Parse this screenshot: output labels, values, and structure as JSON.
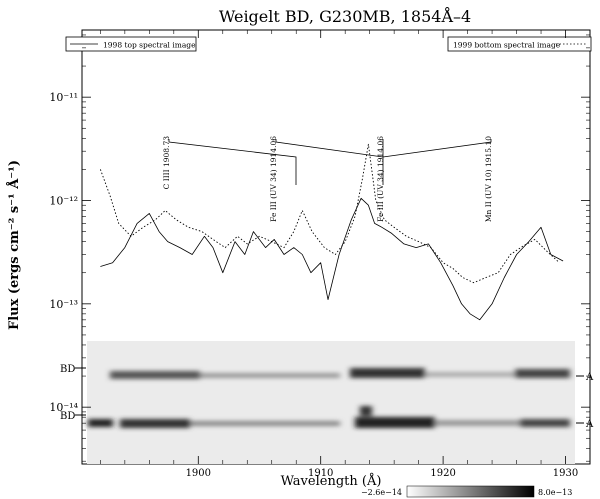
{
  "chart_data": {
    "type": "line",
    "title": "Weigelt BD, G230MB, 1854Å–4",
    "xlabel": "Wavelength (Å)",
    "ylabel": "Flux (ergs cm⁻² s⁻¹ Å⁻¹)",
    "xlim": [
      1890.5,
      1932
    ],
    "ylim_log10": [
      -14.55,
      -10.35
    ],
    "y_scale": "log",
    "x_ticks": [
      1900,
      1910,
      1920,
      1930
    ],
    "x_tick_labels": [
      "1900",
      "1910",
      "1920",
      "1930"
    ],
    "y_ticks_log10": [
      -14,
      -13,
      -12,
      -11
    ],
    "y_tick_labels": [
      "10⁻¹⁴",
      "10⁻¹³",
      "10⁻¹²",
      "10⁻¹¹"
    ],
    "legend": {
      "left": "1998 top spectral image",
      "right": "1999 bottom spectral image"
    },
    "series": [
      {
        "name": "1998 top spectral image",
        "style": "solid",
        "x": [
          1892.0,
          1893.0,
          1894.0,
          1895.0,
          1896.0,
          1896.8,
          1897.5,
          1898.5,
          1899.5,
          1900.5,
          1901.2,
          1902.0,
          1903.0,
          1903.8,
          1904.5,
          1905.5,
          1906.2,
          1907.0,
          1907.8,
          1908.5,
          1909.2,
          1910.0,
          1910.6,
          1911.5,
          1912.5,
          1913.3,
          1913.9,
          1914.4,
          1915.0,
          1915.8,
          1916.8,
          1917.8,
          1918.8,
          1919.8,
          1920.8,
          1921.5,
          1922.2,
          1923.0,
          1924.0,
          1925.0,
          1926.0,
          1927.0,
          1928.0,
          1928.8,
          1929.8
        ],
        "y": [
          2.3e-13,
          2.5e-13,
          3.5e-13,
          6e-13,
          7.5e-13,
          5e-13,
          4e-13,
          3.5e-13,
          3e-13,
          4.5e-13,
          3.5e-13,
          2e-13,
          4e-13,
          3e-13,
          5e-13,
          3.5e-13,
          4.2e-13,
          3e-13,
          3.5e-13,
          3e-13,
          2e-13,
          2.5e-13,
          1.1e-13,
          3e-13,
          6.5e-13,
          1.05e-12,
          9e-13,
          6e-13,
          5.5e-13,
          4.8e-13,
          3.8e-13,
          3.5e-13,
          3.8e-13,
          2.5e-13,
          1.5e-13,
          1e-13,
          8e-14,
          7e-14,
          1e-13,
          1.8e-13,
          3e-13,
          4e-13,
          5.5e-13,
          3e-13,
          2.6e-13
        ]
      },
      {
        "name": "1999 bottom spectral image",
        "style": "dotted",
        "x": [
          1892.0,
          1892.8,
          1893.5,
          1894.5,
          1895.5,
          1896.5,
          1897.3,
          1898.2,
          1899.2,
          1900.3,
          1901.2,
          1902.2,
          1903.2,
          1904.0,
          1905.0,
          1906.0,
          1907.0,
          1907.8,
          1908.5,
          1909.3,
          1910.3,
          1911.2,
          1912.0,
          1912.8,
          1913.4,
          1913.9,
          1914.5,
          1915.2,
          1916.0,
          1917.0,
          1918.0,
          1919.0,
          1920.0,
          1920.8,
          1921.6,
          1922.5,
          1923.5,
          1924.5,
          1925.5,
          1926.5,
          1927.5,
          1928.5,
          1929.5
        ],
        "y": [
          2e-12,
          1.1e-12,
          6e-13,
          4.5e-13,
          5.5e-13,
          6.5e-13,
          8e-13,
          6.5e-13,
          5.5e-13,
          5e-13,
          4.2e-13,
          3.5e-13,
          4.5e-13,
          3.8e-13,
          4.5e-13,
          4e-13,
          3.5e-13,
          5e-13,
          8e-13,
          5e-13,
          3.5e-13,
          3e-13,
          4e-13,
          7e-13,
          1.6e-12,
          3.5e-12,
          1e-12,
          6.5e-13,
          5.5e-13,
          4.5e-13,
          4e-13,
          3.5e-13,
          2.5e-13,
          2.2e-13,
          1.8e-13,
          1.6e-13,
          1.8e-13,
          2e-13,
          3e-13,
          3.6e-13,
          4.2e-13,
          3.2e-13,
          2.5e-13
        ]
      }
    ],
    "annotations": [
      {
        "text": "C IIII 1908.73",
        "line_x": 1908.2
      },
      {
        "text": "Fe III (UV 34) 1914.06",
        "line_x": 1915.0
      },
      {
        "text": "Fe III (UV 34) 1914.06",
        "line_x": 1915.0
      },
      {
        "text": "Mn II (UV 10) 1915.10",
        "line_x": 1915.0
      }
    ],
    "image_panel": {
      "labels_left": [
        "BD",
        "BD"
      ],
      "labels_right": [
        "A",
        "A"
      ],
      "colorbar_min": "−2.6e−14",
      "colorbar_max": "8.0e−13"
    }
  }
}
